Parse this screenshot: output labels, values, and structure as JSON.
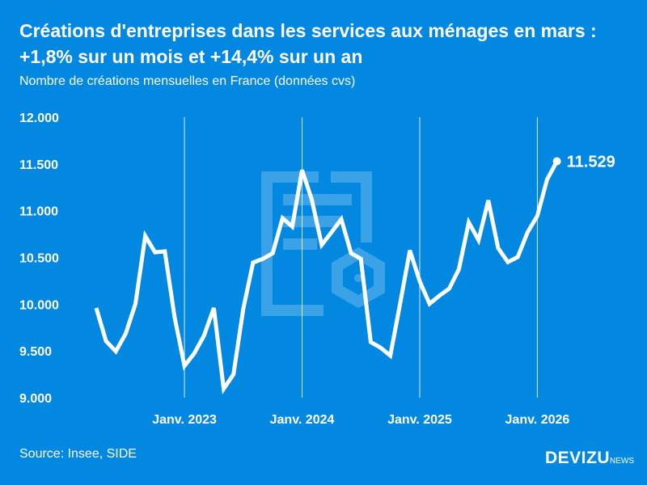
{
  "header": {
    "title_line1": "Créations d'entreprises dans les services aux ménages en mars :",
    "title_line2": "+1,8% sur un mois et +14,4% sur un an",
    "subtitle": "Nombre de créations mensuelles en France (données cvs)"
  },
  "footer": {
    "source": "Source: Insee, SIDE",
    "logo_main": "DEVIZU",
    "logo_suffix": "NEWS"
  },
  "colors": {
    "background": "#0388e1",
    "line": "#ffffff"
  },
  "chart_data": {
    "type": "line",
    "title": "Créations d'entreprises dans les services aux ménages en mars : +1,8% sur un mois et +14,4% sur un an",
    "subtitle": "Nombre de créations mensuelles en France (données cvs)",
    "x_start": "2022-04",
    "x_end": "2026-03",
    "x_frequency": "monthly",
    "ylim": [
      9000,
      12000
    ],
    "y_ticks": [
      9000,
      9500,
      10000,
      10500,
      11000,
      11500,
      12000
    ],
    "y_tick_labels": [
      "9.000",
      "9.500",
      "10.000",
      "10.500",
      "11.000",
      "11.500",
      "12.000"
    ],
    "x_ticks": [
      "2023-01",
      "2024-01",
      "2025-01",
      "2026-01"
    ],
    "x_tick_labels": [
      "Janv. 2023",
      "Janv. 2024",
      "Janv. 2025",
      "Janv. 2026"
    ],
    "grid": "vertical lines at x ticks",
    "values": [
      9960,
      9605,
      9495,
      9685,
      10005,
      10730,
      10555,
      10565,
      9855,
      9340,
      9475,
      9665,
      9960,
      9095,
      9250,
      9950,
      10445,
      10485,
      10545,
      10920,
      10830,
      11435,
      11115,
      10635,
      10770,
      10910,
      10545,
      10485,
      9595,
      9535,
      9450,
      10005,
      10575,
      10245,
      10005,
      10090,
      10165,
      10375,
      10875,
      10685,
      11110,
      10600,
      10450,
      10505,
      10770,
      10945,
      11335,
      11529
    ],
    "last_label": "11.529"
  }
}
